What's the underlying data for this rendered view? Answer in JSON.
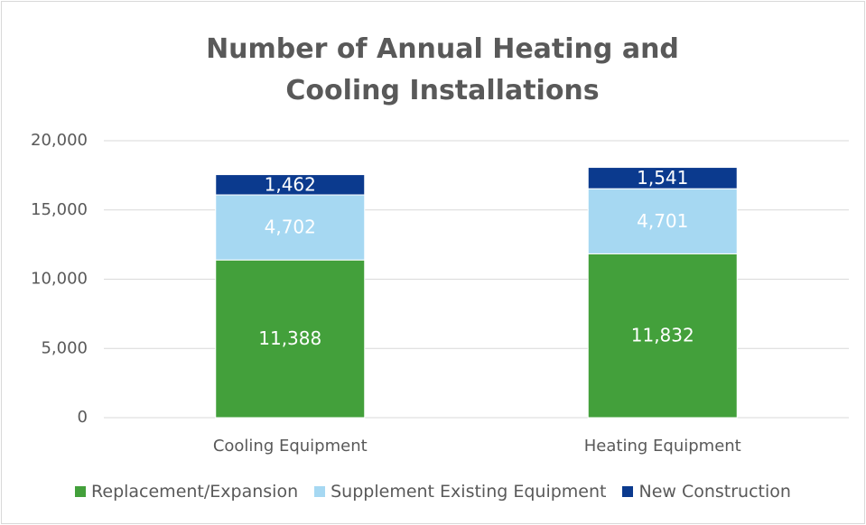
{
  "chart_data": {
    "type": "stacked_bar",
    "title": "Number of Annual Heating and Cooling Installations",
    "categories": [
      "Cooling Equipment",
      "Heating Equipment"
    ],
    "series": [
      {
        "name": "Replacement/Expansion",
        "color": "#43a03b",
        "values": [
          11388,
          11832
        ],
        "value_labels": [
          "11,388",
          "11,832"
        ]
      },
      {
        "name": "Supplement Existing Equipment",
        "color": "#a6d8f2",
        "values": [
          4702,
          4701
        ],
        "value_labels": [
          "4,702",
          "4,701"
        ]
      },
      {
        "name": "New Construction",
        "color": "#0b3a8e",
        "values": [
          1462,
          1541
        ],
        "value_labels": [
          "1,462",
          "1,541"
        ]
      }
    ],
    "ylim": [
      0,
      20000
    ],
    "yticks": [
      0,
      {
        "value": 5000,
        "label": "5,000"
      },
      {
        "value": 10000,
        "label": "10,000"
      },
      {
        "value": 15000,
        "label": "15,000"
      },
      {
        "value": 20000,
        "label": "20,000"
      }
    ],
    "grid": true,
    "legend": "bottom"
  }
}
